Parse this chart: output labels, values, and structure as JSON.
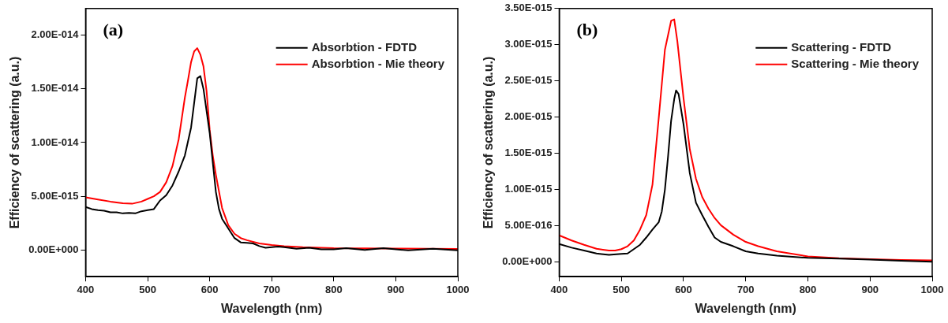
{
  "chart_data": [
    {
      "type": "line",
      "annotations": [
        "(a)"
      ],
      "xlabel": "Wavelength (nm)",
      "ylabel": "Efficiency of scattering (a.u.)",
      "xlim": [
        400,
        1000
      ],
      "xticks": [
        400,
        500,
        600,
        700,
        800,
        900,
        1000
      ],
      "ylim": [
        -2.5e-15,
        2.25e-14
      ],
      "yticks": [
        {
          "value": 0,
          "label": "0.00E+000"
        },
        {
          "value": 5e-15,
          "label": "5.00E-015"
        },
        {
          "value": 1e-14,
          "label": "1.00E-014"
        },
        {
          "value": 1.5e-14,
          "label": "1.50E-014"
        },
        {
          "value": 2e-14,
          "label": "2.00E-014"
        }
      ],
      "grid": false,
      "legend": "top right",
      "marker": "none",
      "line_style": "solid",
      "series": [
        {
          "name": "Absorbtion - FDTD",
          "color": "#000000",
          "x": [
            400,
            410,
            420,
            430,
            440,
            450,
            460,
            470,
            480,
            490,
            500,
            510,
            520,
            530,
            540,
            550,
            560,
            570,
            580,
            585,
            590,
            600,
            610,
            615,
            620,
            630,
            640,
            650,
            660,
            670,
            680,
            690,
            700,
            710,
            720,
            740,
            760,
            780,
            800,
            820,
            850,
            880,
            920,
            960,
            1000
          ],
          "values": [
            4e-15,
            3.8e-15,
            3.7e-15,
            3.65e-15,
            3.5e-15,
            3.5e-15,
            3.4e-15,
            3.45e-15,
            3.4e-15,
            3.6e-15,
            3.7e-15,
            3.8e-15,
            4.6e-15,
            5.1e-15,
            6e-15,
            7.3e-15,
            8.8e-15,
            1.14e-14,
            1.6e-14,
            1.62e-14,
            1.5e-14,
            1.09e-14,
            5.4e-15,
            3.8e-15,
            2.9e-15,
            2e-15,
            1.1e-15,
            7e-16,
            6.5e-16,
            6e-16,
            3.5e-16,
            2e-16,
            2.5e-16,
            3e-16,
            2.5e-16,
            1e-16,
            2e-16,
            5e-17,
            5e-17,
            1.5e-16,
            0.0,
            1.5e-16,
            -5e-17,
            1e-16,
            -5e-17
          ]
        },
        {
          "name": "Absorbtion - Mie theory",
          "color": "#ff0000",
          "x": [
            400,
            420,
            440,
            460,
            475,
            490,
            500,
            510,
            520,
            530,
            540,
            550,
            560,
            565,
            570,
            575,
            580,
            585,
            590,
            595,
            600,
            605,
            610,
            620,
            630,
            640,
            650,
            660,
            680,
            700,
            720,
            750,
            800,
            900,
            1000
          ],
          "values": [
            4.9e-15,
            4.7e-15,
            4.5e-15,
            4.35e-15,
            4.3e-15,
            4.5e-15,
            4.75e-15,
            5e-15,
            5.4e-15,
            6.3e-15,
            7.8e-15,
            1.03e-14,
            1.42e-14,
            1.58e-14,
            1.75e-14,
            1.85e-14,
            1.88e-14,
            1.82e-14,
            1.71e-14,
            1.48e-14,
            1.12e-14,
            8.8e-15,
            7e-15,
            3.9e-15,
            2.3e-15,
            1.5e-15,
            1.1e-15,
            9e-16,
            6e-16,
            4.5e-16,
            3.5e-16,
            2.5e-16,
            1.5e-16,
            1.2e-16,
            8e-17
          ]
        }
      ]
    },
    {
      "type": "line",
      "annotations": [
        "(b)"
      ],
      "xlabel": "Wavelength (nm)",
      "ylabel": "Efficiency of scattering (a.u.)",
      "xlim": [
        400,
        1000
      ],
      "xticks": [
        400,
        500,
        600,
        700,
        800,
        900,
        1000
      ],
      "ylim": [
        -2e-16,
        3.5e-15
      ],
      "yticks": [
        {
          "value": 0,
          "label": "0.00E+000"
        },
        {
          "value": 5e-16,
          "label": "5.00E-016"
        },
        {
          "value": 1e-15,
          "label": "1.00E-015"
        },
        {
          "value": 1.5e-15,
          "label": "1.50E-015"
        },
        {
          "value": 2e-15,
          "label": "2.00E-015"
        },
        {
          "value": 2.5e-15,
          "label": "2.50E-015"
        },
        {
          "value": 3e-15,
          "label": "3.00E-015"
        },
        {
          "value": 3.5e-15,
          "label": "3.50E-015"
        }
      ],
      "grid": false,
      "legend": "top right",
      "marker": "none",
      "line_style": "solid",
      "series": [
        {
          "name": "Scattering - FDTD",
          "color": "#000000",
          "x": [
            400,
            420,
            440,
            460,
            480,
            500,
            510,
            520,
            530,
            540,
            550,
            560,
            565,
            570,
            575,
            580,
            585,
            588,
            592,
            600,
            610,
            620,
            630,
            640,
            650,
            660,
            680,
            700,
            720,
            750,
            800,
            850,
            900,
            950,
            1000
          ],
          "values": [
            2.5e-16,
            2e-16,
            1.6e-16,
            1.2e-16,
            1e-16,
            1.15e-16,
            1.2e-16,
            1.8e-16,
            2.4e-16,
            3.4e-16,
            4.5e-16,
            5.5e-16,
            7e-16,
            1e-15,
            1.45e-15,
            1.95e-15,
            2.25e-15,
            2.37e-15,
            2.32e-15,
            1.9e-15,
            1.23e-15,
            8.2e-16,
            6.5e-16,
            4.9e-16,
            3.4e-16,
            2.8e-16,
            2.2e-16,
            1.5e-16,
            1.2e-16,
            9e-17,
            6e-17,
            5e-17,
            3.5e-17,
            2e-17,
            5e-18
          ]
        },
        {
          "name": "Scattering - Mie theory",
          "color": "#ff0000",
          "x": [
            400,
            420,
            440,
            460,
            480,
            490,
            500,
            510,
            520,
            530,
            540,
            550,
            560,
            570,
            580,
            585,
            590,
            600,
            610,
            620,
            630,
            640,
            650,
            660,
            680,
            700,
            720,
            750,
            800,
            850,
            900,
            950,
            1000
          ],
          "values": [
            3.7e-16,
            3e-16,
            2.4e-16,
            1.85e-16,
            1.6e-16,
            1.6e-16,
            1.8e-16,
            2.2e-16,
            3e-16,
            4.5e-16,
            6.5e-16,
            1.07e-15,
            1.98e-15,
            2.93e-15,
            3.33e-15,
            3.35e-15,
            3.05e-15,
            2.26e-15,
            1.56e-15,
            1.15e-15,
            9e-16,
            7.4e-16,
            6.1e-16,
            5.1e-16,
            3.8e-16,
            2.8e-16,
            2.2e-16,
            1.5e-16,
            8e-17,
            5.5e-17,
            4e-17,
            3e-17,
            2.5e-17
          ]
        }
      ]
    }
  ]
}
